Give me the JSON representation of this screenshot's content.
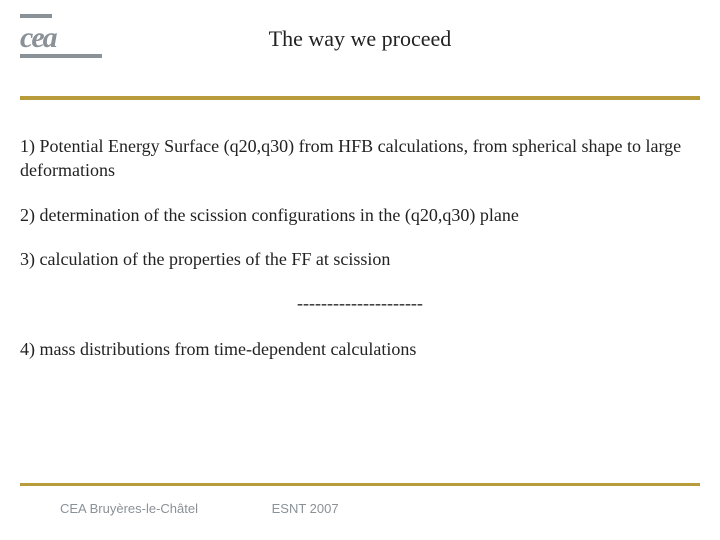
{
  "colors": {
    "accent_bar": "#b89b3a",
    "logo_gray": "#8a9197",
    "text": "#222222",
    "background": "#ffffff"
  },
  "typography": {
    "title_fontsize_pt": 22,
    "body_fontsize_pt": 18,
    "footer_fontsize_pt": 13,
    "body_font": "Comic Sans MS",
    "footer_font": "Arial"
  },
  "logo": {
    "text": "cea"
  },
  "title": "The way we proceed",
  "items": {
    "p1": "1) Potential Energy Surface (q20,q30) from HFB calculations, from spherical shape to large deformations",
    "p2": "2) determination of the scission configurations in the (q20,q30) plane",
    "p3": "3) calculation of the properties of the FF at scission",
    "sep": "---------------------",
    "p4": "4) mass distributions from  time-dependent calculations"
  },
  "footer": {
    "left": "CEA Bruyères-le-Châtel",
    "right": "ESNT 2007"
  }
}
